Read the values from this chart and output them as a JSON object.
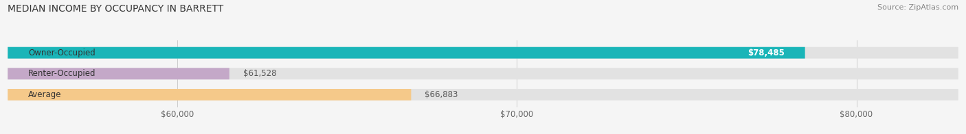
{
  "title": "MEDIAN INCOME BY OCCUPANCY IN BARRETT",
  "source": "Source: ZipAtlas.com",
  "categories": [
    "Owner-Occupied",
    "Renter-Occupied",
    "Average"
  ],
  "values": [
    78485,
    61528,
    66883
  ],
  "bar_colors": [
    "#1ab5b8",
    "#c4a8c8",
    "#f5c98a"
  ],
  "bar_labels": [
    "$78,485",
    "$61,528",
    "$66,883"
  ],
  "xlim_min": 55000,
  "xlim_max": 83000,
  "xticks": [
    60000,
    70000,
    80000
  ],
  "xtick_labels": [
    "$60,000",
    "$70,000",
    "$80,000"
  ],
  "background_color": "#f5f5f5",
  "bar_background_color": "#e2e2e2",
  "title_fontsize": 10,
  "source_fontsize": 8,
  "label_fontsize": 8.5,
  "bar_height": 0.55
}
